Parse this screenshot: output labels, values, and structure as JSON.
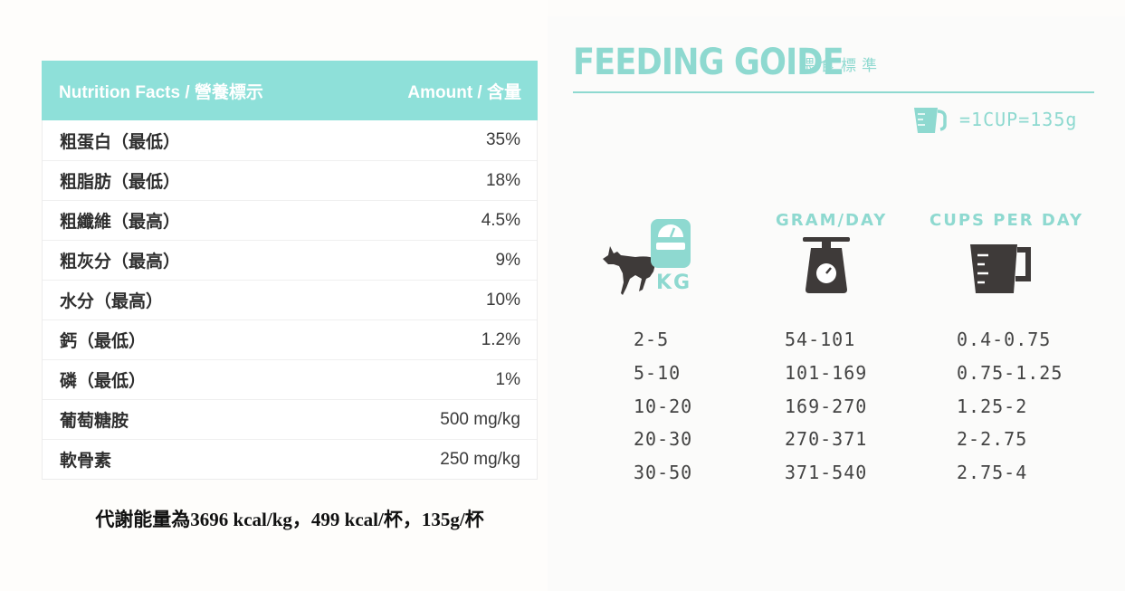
{
  "nutrition": {
    "header_name": "Nutrition Facts / 營養標示",
    "header_amount": "Amount / 含量",
    "rows": [
      {
        "name": "粗蛋白（最低）",
        "value": "35%"
      },
      {
        "name": "粗脂肪（最低）",
        "value": "18%"
      },
      {
        "name": "粗纖維（最高）",
        "value": "4.5%"
      },
      {
        "name": "粗灰分（最高）",
        "value": "9%"
      },
      {
        "name": "水分（最高）",
        "value": "10%"
      },
      {
        "name": "鈣（最低）",
        "value": "1.2%"
      },
      {
        "name": "磷（最低）",
        "value": "1%"
      },
      {
        "name": "葡萄糖胺",
        "value": "500 mg/kg"
      },
      {
        "name": "軟骨素",
        "value": "250 mg/kg"
      }
    ],
    "energy_note": "代謝能量為3696 kcal/kg，499 kcal/杯，135g/杯"
  },
  "feeding": {
    "title": "FEEDING GOIDE",
    "subtitle": "餵食標準",
    "cup_note": "=1CUP=135g",
    "weight_unit": "KG",
    "col_gram": "GRAM/DAY",
    "col_cups": "CUPS PER DAY",
    "accent_color": "#8ed9d0",
    "icon_dark_color": "#3e3a39",
    "weights": [
      "2-5",
      "5-10",
      "10-20",
      "20-30",
      "30-50"
    ],
    "grams": [
      "54-101",
      "101-169",
      "169-270",
      "270-371",
      "371-540"
    ],
    "cups": [
      "0.4-0.75",
      "0.75-1.25",
      "1.25-2",
      "2-2.75",
      "2.75-4"
    ],
    "icons": [
      "dog-icon",
      "weight-scale-icon",
      "kitchen-scale-icon",
      "measuring-cup-icon"
    ]
  }
}
